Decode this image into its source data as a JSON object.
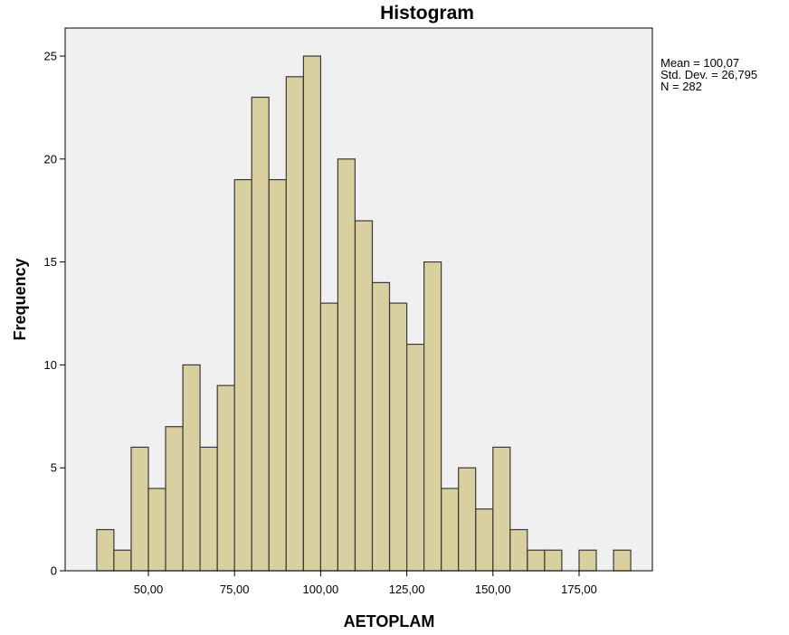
{
  "chart_data": {
    "type": "bar",
    "title": "Histogram",
    "xlabel": "AETOPLAM",
    "ylabel": "Frequency",
    "bin_width": 5,
    "bins": [
      {
        "start": 35,
        "end": 40,
        "value": 2
      },
      {
        "start": 40,
        "end": 45,
        "value": 1
      },
      {
        "start": 45,
        "end": 50,
        "value": 6
      },
      {
        "start": 50,
        "end": 55,
        "value": 4
      },
      {
        "start": 55,
        "end": 60,
        "value": 7
      },
      {
        "start": 60,
        "end": 65,
        "value": 10
      },
      {
        "start": 65,
        "end": 70,
        "value": 6
      },
      {
        "start": 70,
        "end": 75,
        "value": 9
      },
      {
        "start": 75,
        "end": 80,
        "value": 19
      },
      {
        "start": 80,
        "end": 85,
        "value": 23
      },
      {
        "start": 85,
        "end": 90,
        "value": 19
      },
      {
        "start": 90,
        "end": 95,
        "value": 24
      },
      {
        "start": 95,
        "end": 100,
        "value": 25
      },
      {
        "start": 100,
        "end": 105,
        "value": 13
      },
      {
        "start": 105,
        "end": 110,
        "value": 20
      },
      {
        "start": 110,
        "end": 115,
        "value": 17
      },
      {
        "start": 115,
        "end": 120,
        "value": 14
      },
      {
        "start": 120,
        "end": 125,
        "value": 13
      },
      {
        "start": 125,
        "end": 130,
        "value": 11
      },
      {
        "start": 130,
        "end": 135,
        "value": 15
      },
      {
        "start": 135,
        "end": 140,
        "value": 4
      },
      {
        "start": 140,
        "end": 145,
        "value": 5
      },
      {
        "start": 145,
        "end": 150,
        "value": 3
      },
      {
        "start": 150,
        "end": 155,
        "value": 6
      },
      {
        "start": 155,
        "end": 160,
        "value": 2
      },
      {
        "start": 160,
        "end": 165,
        "value": 1
      },
      {
        "start": 165,
        "end": 170,
        "value": 1
      },
      {
        "start": 170,
        "end": 175,
        "value": 0
      },
      {
        "start": 175,
        "end": 180,
        "value": 1
      },
      {
        "start": 180,
        "end": 185,
        "value": 0
      },
      {
        "start": 185,
        "end": 190,
        "value": 1
      }
    ],
    "xlim": [
      25,
      200
    ],
    "ylim": [
      0,
      26
    ],
    "x_ticks": [
      {
        "value": 50,
        "label": "50,00"
      },
      {
        "value": 75,
        "label": "75,00"
      },
      {
        "value": 100,
        "label": "100,00"
      },
      {
        "value": 125,
        "label": "125,00"
      },
      {
        "value": 150,
        "label": "150,00"
      },
      {
        "value": 175,
        "label": "175,00"
      }
    ],
    "y_ticks": [
      {
        "value": 0,
        "label": "0"
      },
      {
        "value": 5,
        "label": "5"
      },
      {
        "value": 10,
        "label": "10"
      },
      {
        "value": 15,
        "label": "15"
      },
      {
        "value": 20,
        "label": "20"
      },
      {
        "value": 25,
        "label": "25"
      }
    ],
    "stats": {
      "mean": "Mean = 100,07",
      "std_dev": "Std. Dev. = 26,795",
      "n": "N = 282"
    },
    "grid": false,
    "legend": "none",
    "colors": {
      "bar_fill": "#d9d0a0",
      "bar_stroke": "#3a3a3a",
      "plot_bg": "#f0f0f0",
      "frame": "#000000"
    }
  }
}
